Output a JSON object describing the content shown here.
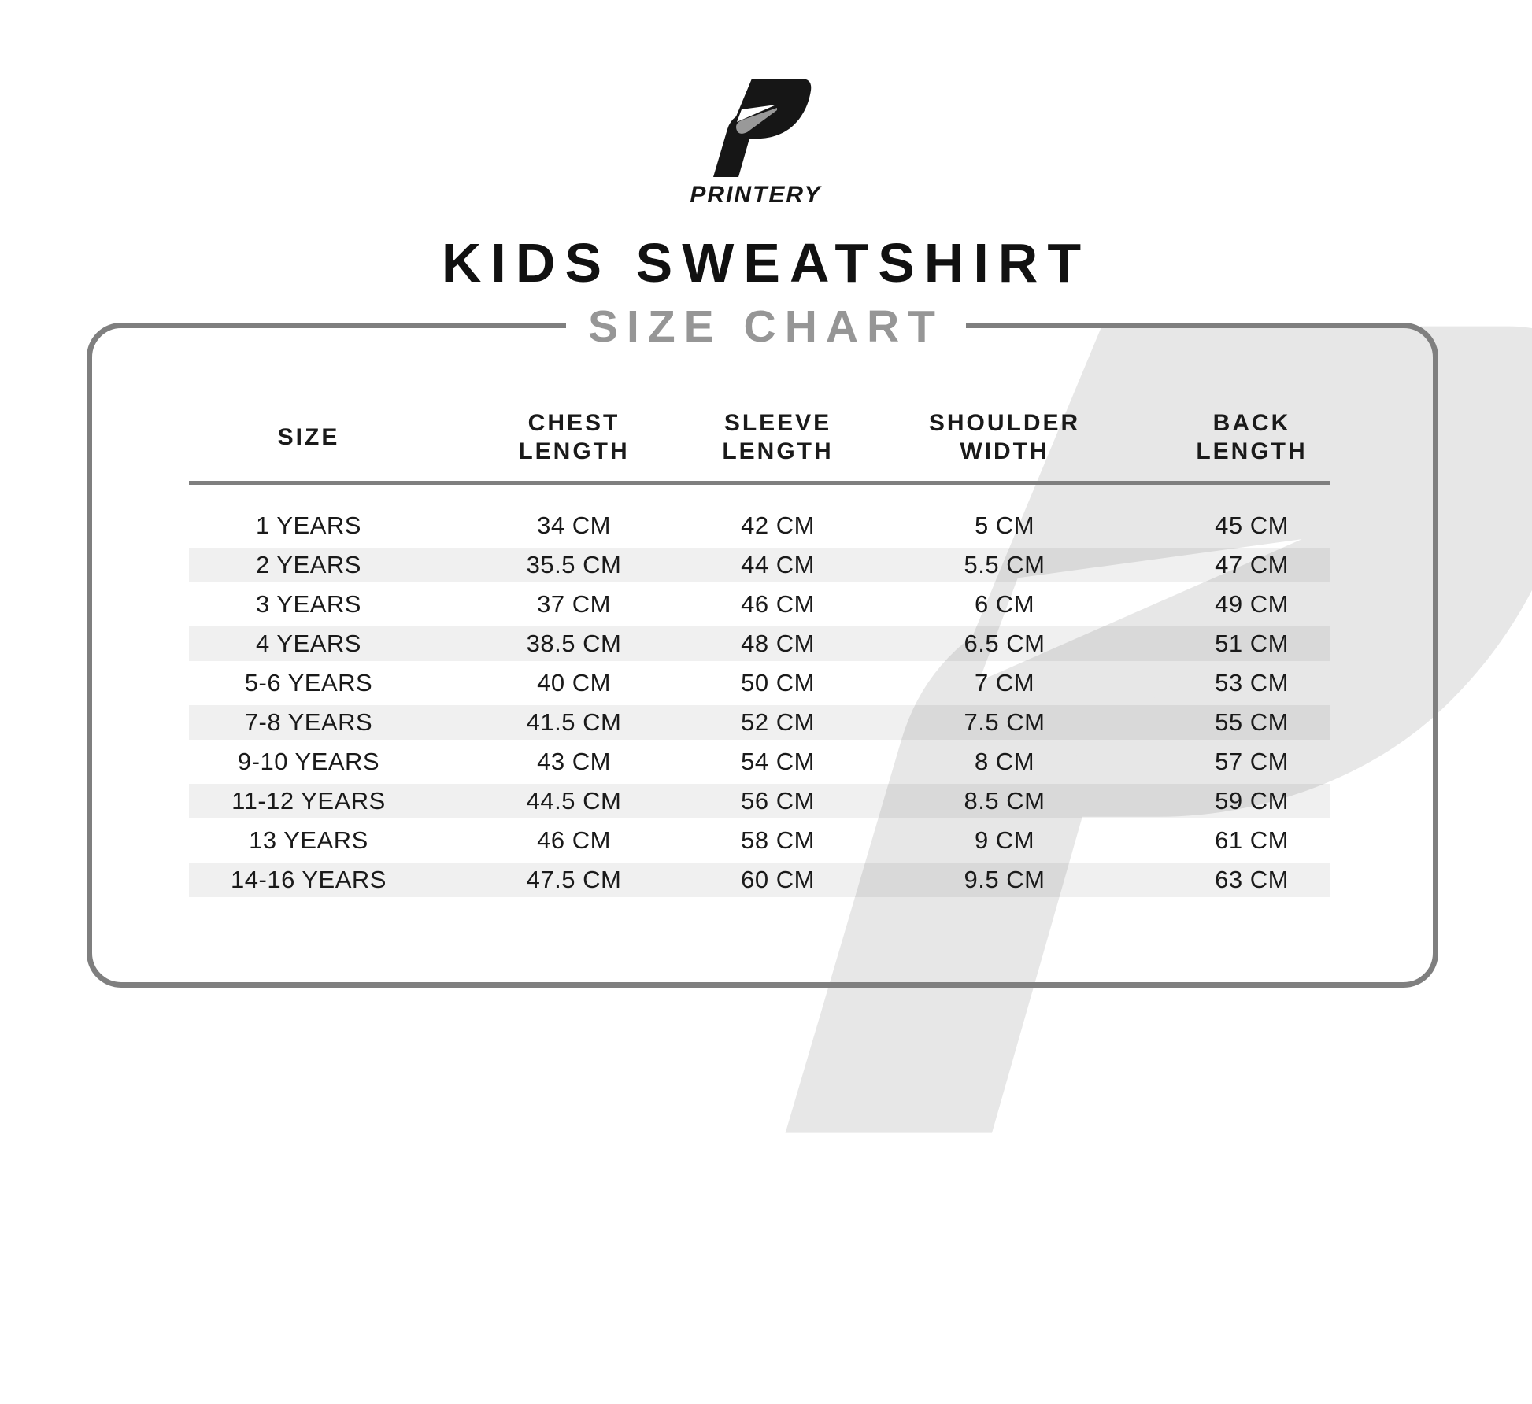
{
  "brand": {
    "name": "PRINTERY",
    "logo_icon": "printery-p-logo",
    "watermark_icon": "printery-p-watermark"
  },
  "title": "KIDS SWEATSHIRT",
  "subtitle": "SIZE CHART",
  "table": {
    "columns": [
      "SIZE",
      "CHEST\nLENGTH",
      "SLEEVE\nLENGTH",
      "SHOULDER\nWIDTH",
      "BACK\nLENGTH"
    ],
    "column_keys": [
      "size",
      "chest",
      "sleeve",
      "shoulder",
      "back"
    ],
    "rows": [
      {
        "size": "1 YEARS",
        "chest": "34 CM",
        "sleeve": "42 CM",
        "shoulder": "5 CM",
        "back": "45 CM"
      },
      {
        "size": "2 YEARS",
        "chest": "35.5 CM",
        "sleeve": "44 CM",
        "shoulder": "5.5 CM",
        "back": "47 CM"
      },
      {
        "size": "3 YEARS",
        "chest": "37 CM",
        "sleeve": "46 CM",
        "shoulder": "6 CM",
        "back": "49 CM"
      },
      {
        "size": "4 YEARS",
        "chest": "38.5 CM",
        "sleeve": "48 CM",
        "shoulder": "6.5 CM",
        "back": "51 CM"
      },
      {
        "size": "5-6 YEARS",
        "chest": "40 CM",
        "sleeve": "50 CM",
        "shoulder": "7 CM",
        "back": "53 CM"
      },
      {
        "size": "7-8 YEARS",
        "chest": "41.5 CM",
        "sleeve": "52 CM",
        "shoulder": "7.5 CM",
        "back": "55 CM"
      },
      {
        "size": "9-10 YEARS",
        "chest": "43 CM",
        "sleeve": "54 CM",
        "shoulder": "8 CM",
        "back": "57 CM"
      },
      {
        "size": "11-12 YEARS",
        "chest": "44.5 CM",
        "sleeve": "56 CM",
        "shoulder": "8.5 CM",
        "back": "59 CM"
      },
      {
        "size": "13 YEARS",
        "chest": "46 CM",
        "sleeve": "58 CM",
        "shoulder": "9 CM",
        "back": "61 CM"
      },
      {
        "size": "14-16 YEARS",
        "chest": "47.5 CM",
        "sleeve": "60 CM",
        "shoulder": "9.5 CM",
        "back": "63 CM"
      }
    ]
  },
  "colors": {
    "text": "#1a1a1a",
    "line_gray": "#7f7f7f",
    "subtitle_gray": "#969696",
    "stripe": "rgba(0,0,0,0.06)",
    "watermark": "#e7e7e7",
    "fold_gray": "#999999",
    "logo_black": "#161616"
  }
}
